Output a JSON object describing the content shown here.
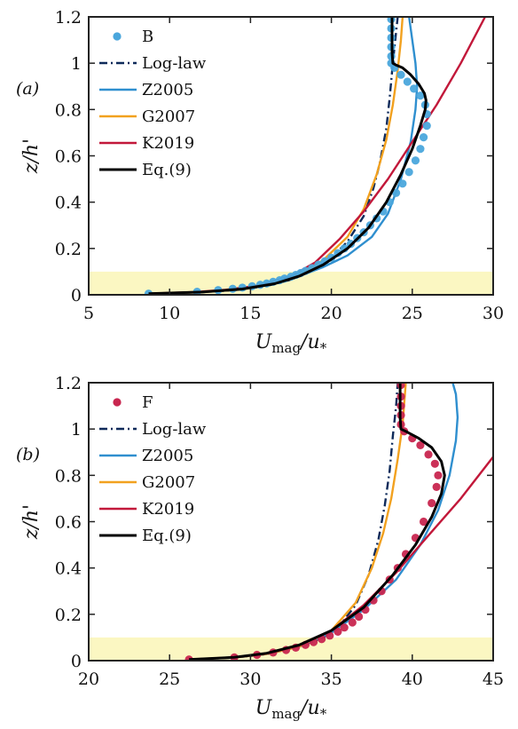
{
  "chart_data": [
    {
      "type": "line",
      "panel_label": "(a)",
      "xlabel": "U_mag/u_*",
      "xlabel_main": "U",
      "xlabel_sub": "mag",
      "xlabel_tail": "/u",
      "xlabel_star": "*",
      "ylabel": "z/h'",
      "xlim": [
        5,
        30
      ],
      "ylim": [
        0,
        1.2
      ],
      "xticks": [
        "5",
        "10",
        "15",
        "20",
        "25",
        "30"
      ],
      "yticks": [
        "0",
        "0.2",
        "0.4",
        "0.6",
        "0.8",
        "1",
        "1.2"
      ],
      "xtick_values": [
        5,
        10,
        15,
        20,
        25,
        30
      ],
      "ytick_values": [
        0,
        0.2,
        0.4,
        0.6,
        0.8,
        1.0,
        1.2
      ],
      "shaded_band": [
        0,
        0.1
      ],
      "legend_position": "top-left",
      "colors": {
        "data": "#4aa6dc",
        "loglaw": "#0e2a5a",
        "z2005": "#2f8fcf",
        "g2007": "#f2a11f",
        "k2019": "#c2183a",
        "eq9": "#000000",
        "band": "#fbf7c2"
      },
      "series": [
        {
          "name": "B",
          "style": "markers",
          "color": "#4aa6dc",
          "points": [
            [
              8.7,
              0.005
            ],
            [
              11.7,
              0.013
            ],
            [
              13.0,
              0.02
            ],
            [
              13.9,
              0.026
            ],
            [
              14.5,
              0.031
            ],
            [
              15.1,
              0.037
            ],
            [
              15.6,
              0.043
            ],
            [
              16.0,
              0.049
            ],
            [
              16.4,
              0.056
            ],
            [
              16.8,
              0.063
            ],
            [
              17.1,
              0.07
            ],
            [
              17.5,
              0.078
            ],
            [
              17.8,
              0.086
            ],
            [
              18.1,
              0.094
            ],
            [
              18.4,
              0.103
            ],
            [
              18.8,
              0.115
            ],
            [
              19.2,
              0.13
            ],
            [
              19.6,
              0.145
            ],
            [
              20.0,
              0.16
            ],
            [
              20.4,
              0.18
            ],
            [
              20.8,
              0.2
            ],
            [
              21.2,
              0.22
            ],
            [
              21.6,
              0.245
            ],
            [
              22.0,
              0.27
            ],
            [
              22.4,
              0.3
            ],
            [
              22.8,
              0.33
            ],
            [
              23.2,
              0.36
            ],
            [
              23.6,
              0.4
            ],
            [
              24.0,
              0.44
            ],
            [
              24.4,
              0.48
            ],
            [
              24.8,
              0.53
            ],
            [
              25.2,
              0.58
            ],
            [
              25.5,
              0.63
            ],
            [
              25.7,
              0.68
            ],
            [
              25.9,
              0.73
            ],
            [
              25.9,
              0.78
            ],
            [
              25.8,
              0.82
            ],
            [
              25.5,
              0.86
            ],
            [
              25.1,
              0.89
            ],
            [
              24.7,
              0.92
            ],
            [
              24.3,
              0.95
            ],
            [
              23.9,
              0.98
            ],
            [
              23.7,
              1.0
            ],
            [
              23.7,
              1.03
            ],
            [
              23.7,
              1.07
            ],
            [
              23.7,
              1.11
            ],
            [
              23.7,
              1.15
            ],
            [
              23.7,
              1.19
            ]
          ]
        },
        {
          "name": "Log-law",
          "style": "dashdot",
          "color": "#0e2a5a",
          "points": [
            [
              8.7,
              0.005
            ],
            [
              12.0,
              0.011
            ],
            [
              14.0,
              0.02
            ],
            [
              16.0,
              0.038
            ],
            [
              17.5,
              0.065
            ],
            [
              19.0,
              0.11
            ],
            [
              20.0,
              0.16
            ],
            [
              21.0,
              0.23
            ],
            [
              22.0,
              0.34
            ],
            [
              22.6,
              0.46
            ],
            [
              23.0,
              0.57
            ],
            [
              23.4,
              0.72
            ],
            [
              23.6,
              0.85
            ],
            [
              23.8,
              1.0
            ],
            [
              23.95,
              1.1
            ],
            [
              24.1,
              1.2
            ]
          ]
        },
        {
          "name": "Z2005",
          "style": "solid",
          "color": "#2f8fcf",
          "points": [
            [
              8.7,
              0.005
            ],
            [
              12.0,
              0.011
            ],
            [
              14.0,
              0.022
            ],
            [
              16.0,
              0.045
            ],
            [
              18.0,
              0.08
            ],
            [
              19.5,
              0.12
            ],
            [
              21.0,
              0.17
            ],
            [
              22.5,
              0.25
            ],
            [
              23.5,
              0.35
            ],
            [
              24.3,
              0.5
            ],
            [
              24.9,
              0.66
            ],
            [
              25.2,
              0.8
            ],
            [
              25.3,
              0.9
            ],
            [
              25.2,
              1.0
            ],
            [
              25.0,
              1.1
            ],
            [
              24.8,
              1.2
            ]
          ]
        },
        {
          "name": "G2007",
          "style": "solid",
          "color": "#f2a11f",
          "points": [
            [
              8.7,
              0.005
            ],
            [
              12.0,
              0.011
            ],
            [
              14.0,
              0.021
            ],
            [
              16.0,
              0.043
            ],
            [
              18.0,
              0.09
            ],
            [
              19.5,
              0.15
            ],
            [
              21.0,
              0.25
            ],
            [
              22.0,
              0.37
            ],
            [
              22.8,
              0.52
            ],
            [
              23.4,
              0.67
            ],
            [
              23.8,
              0.82
            ],
            [
              24.1,
              0.97
            ],
            [
              24.3,
              1.1
            ],
            [
              24.4,
              1.2
            ]
          ]
        },
        {
          "name": "K2019",
          "style": "solid",
          "color": "#c2183a",
          "points": [
            [
              8.7,
              0.005
            ],
            [
              11.5,
              0.012
            ],
            [
              13.5,
              0.022
            ],
            [
              15.5,
              0.04
            ],
            [
              17.5,
              0.08
            ],
            [
              19.0,
              0.14
            ],
            [
              20.5,
              0.24
            ],
            [
              22.0,
              0.36
            ],
            [
              23.5,
              0.5
            ],
            [
              25.0,
              0.66
            ],
            [
              26.5,
              0.82
            ],
            [
              28.0,
              1.0
            ],
            [
              29.5,
              1.2
            ]
          ]
        },
        {
          "name": "Eq.(9)",
          "style": "solid",
          "color": "#000000",
          "points": [
            [
              8.7,
              0.005
            ],
            [
              12.0,
              0.012
            ],
            [
              14.5,
              0.025
            ],
            [
              16.5,
              0.048
            ],
            [
              18.0,
              0.08
            ],
            [
              19.5,
              0.13
            ],
            [
              21.0,
              0.2
            ],
            [
              22.3,
              0.29
            ],
            [
              23.4,
              0.4
            ],
            [
              24.3,
              0.52
            ],
            [
              25.0,
              0.63
            ],
            [
              25.5,
              0.73
            ],
            [
              25.8,
              0.8
            ],
            [
              25.85,
              0.84
            ],
            [
              25.75,
              0.87
            ],
            [
              25.4,
              0.91
            ],
            [
              24.9,
              0.95
            ],
            [
              24.4,
              0.98
            ],
            [
              24.0,
              0.992
            ],
            [
              23.8,
              1.0
            ],
            [
              23.75,
              1.05
            ],
            [
              23.75,
              1.12
            ],
            [
              23.75,
              1.2
            ]
          ]
        }
      ]
    },
    {
      "type": "line",
      "panel_label": "(b)",
      "xlabel": "U_mag/u_*",
      "xlabel_main": "U",
      "xlabel_sub": "mag",
      "xlabel_tail": "/u",
      "xlabel_star": "*",
      "ylabel": "z/h'",
      "xlim": [
        20,
        45
      ],
      "ylim": [
        0,
        1.2
      ],
      "xticks": [
        "20",
        "25",
        "30",
        "35",
        "40",
        "45"
      ],
      "yticks": [
        "0",
        "0.2",
        "0.4",
        "0.6",
        "0.8",
        "1",
        "1.2"
      ],
      "xtick_values": [
        20,
        25,
        30,
        35,
        40,
        45
      ],
      "ytick_values": [
        0,
        0.2,
        0.4,
        0.6,
        0.8,
        1.0,
        1.2
      ],
      "shaded_band": [
        0,
        0.1
      ],
      "legend_position": "top-left",
      "colors": {
        "data": "#c8264f",
        "loglaw": "#0e2a5a",
        "z2005": "#2f8fcf",
        "g2007": "#f2a11f",
        "k2019": "#c2183a",
        "eq9": "#000000",
        "band": "#fbf7c2"
      },
      "series": [
        {
          "name": "F",
          "style": "markers",
          "color": "#c8264f",
          "points": [
            [
              26.2,
              0.005
            ],
            [
              29.0,
              0.014
            ],
            [
              30.4,
              0.025
            ],
            [
              31.4,
              0.035
            ],
            [
              32.2,
              0.046
            ],
            [
              32.8,
              0.056
            ],
            [
              33.4,
              0.068
            ],
            [
              33.9,
              0.08
            ],
            [
              34.4,
              0.093
            ],
            [
              34.9,
              0.108
            ],
            [
              35.4,
              0.125
            ],
            [
              35.8,
              0.143
            ],
            [
              36.3,
              0.165
            ],
            [
              36.7,
              0.19
            ],
            [
              37.1,
              0.22
            ],
            [
              37.6,
              0.26
            ],
            [
              38.1,
              0.3
            ],
            [
              38.6,
              0.35
            ],
            [
              39.1,
              0.4
            ],
            [
              39.6,
              0.46
            ],
            [
              40.2,
              0.53
            ],
            [
              40.7,
              0.6
            ],
            [
              41.2,
              0.68
            ],
            [
              41.5,
              0.75
            ],
            [
              41.6,
              0.8
            ],
            [
              41.4,
              0.85
            ],
            [
              41.0,
              0.89
            ],
            [
              40.5,
              0.93
            ],
            [
              40.0,
              0.96
            ],
            [
              39.5,
              0.99
            ],
            [
              39.3,
              1.02
            ],
            [
              39.3,
              1.06
            ],
            [
              39.3,
              1.1
            ],
            [
              39.3,
              1.14
            ],
            [
              39.3,
              1.19
            ]
          ]
        },
        {
          "name": "Log-law",
          "style": "dashdot",
          "color": "#0e2a5a",
          "points": [
            [
              26.2,
              0.005
            ],
            [
              29.0,
              0.013
            ],
            [
              31.0,
              0.028
            ],
            [
              33.0,
              0.06
            ],
            [
              34.5,
              0.1
            ],
            [
              35.5,
              0.15
            ],
            [
              36.5,
              0.24
            ],
            [
              37.3,
              0.37
            ],
            [
              37.9,
              0.52
            ],
            [
              38.3,
              0.67
            ],
            [
              38.6,
              0.82
            ],
            [
              38.8,
              0.97
            ],
            [
              39.0,
              1.1
            ],
            [
              39.1,
              1.2
            ]
          ]
        },
        {
          "name": "Z2005",
          "style": "solid",
          "color": "#2f8fcf",
          "points": [
            [
              26.2,
              0.005
            ],
            [
              29.0,
              0.013
            ],
            [
              31.0,
              0.03
            ],
            [
              33.0,
              0.06
            ],
            [
              35.0,
              0.12
            ],
            [
              37.0,
              0.22
            ],
            [
              39.0,
              0.35
            ],
            [
              40.5,
              0.5
            ],
            [
              41.6,
              0.65
            ],
            [
              42.3,
              0.8
            ],
            [
              42.7,
              0.95
            ],
            [
              42.8,
              1.05
            ],
            [
              42.7,
              1.15
            ],
            [
              42.5,
              1.2
            ]
          ]
        },
        {
          "name": "G2007",
          "style": "solid",
          "color": "#f2a11f",
          "points": [
            [
              26.2,
              0.005
            ],
            [
              29.0,
              0.013
            ],
            [
              31.0,
              0.029
            ],
            [
              33.0,
              0.06
            ],
            [
              35.0,
              0.13
            ],
            [
              36.5,
              0.25
            ],
            [
              37.5,
              0.4
            ],
            [
              38.2,
              0.55
            ],
            [
              38.7,
              0.7
            ],
            [
              39.1,
              0.87
            ],
            [
              39.4,
              1.02
            ],
            [
              39.6,
              1.2
            ]
          ]
        },
        {
          "name": "K2019",
          "style": "solid",
          "color": "#c2183a",
          "points": [
            [
              26.2,
              0.005
            ],
            [
              29.0,
              0.014
            ],
            [
              31.0,
              0.03
            ],
            [
              33.0,
              0.065
            ],
            [
              35.0,
              0.13
            ],
            [
              37.0,
              0.24
            ],
            [
              39.0,
              0.38
            ],
            [
              41.0,
              0.54
            ],
            [
              43.0,
              0.7
            ],
            [
              45.0,
              0.88
            ]
          ]
        },
        {
          "name": "Eq.(9)",
          "style": "solid",
          "color": "#000000",
          "points": [
            [
              26.2,
              0.005
            ],
            [
              29.0,
              0.014
            ],
            [
              31.0,
              0.032
            ],
            [
              33.0,
              0.067
            ],
            [
              35.0,
              0.13
            ],
            [
              37.0,
              0.23
            ],
            [
              38.8,
              0.37
            ],
            [
              40.2,
              0.5
            ],
            [
              41.2,
              0.62
            ],
            [
              41.8,
              0.72
            ],
            [
              42.0,
              0.8
            ],
            [
              41.8,
              0.86
            ],
            [
              41.2,
              0.92
            ],
            [
              40.4,
              0.96
            ],
            [
              39.6,
              0.99
            ],
            [
              39.3,
              1.0
            ],
            [
              39.25,
              1.05
            ],
            [
              39.25,
              1.12
            ],
            [
              39.25,
              1.2
            ]
          ]
        }
      ]
    }
  ]
}
